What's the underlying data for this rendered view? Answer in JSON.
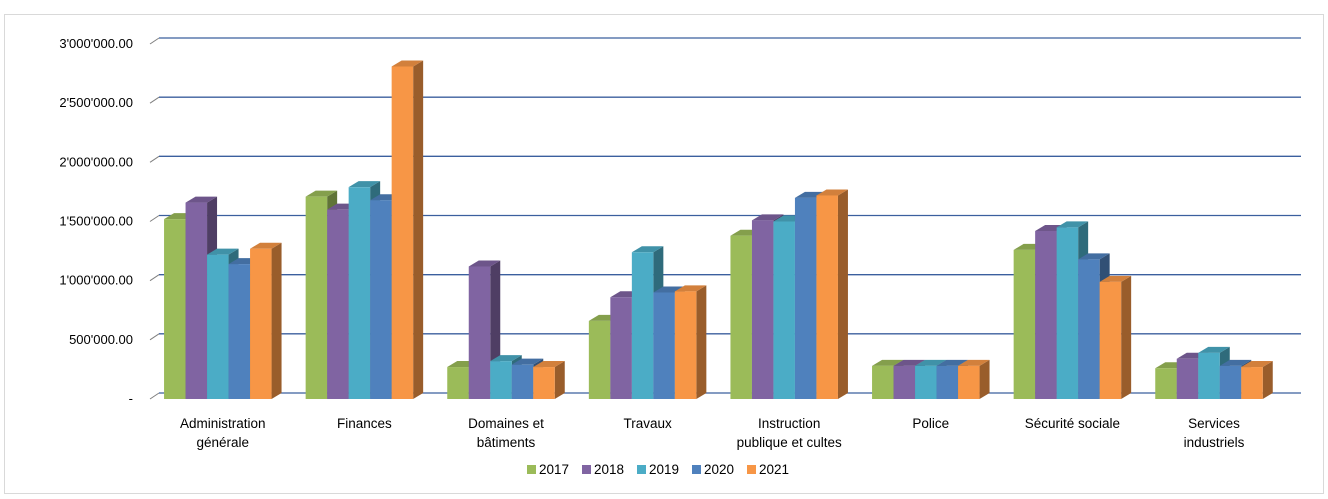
{
  "chart_data": {
    "type": "bar",
    "title": "",
    "xlabel": "",
    "ylabel": "",
    "ylim": [
      0,
      3000000
    ],
    "y_ticks": [
      {
        "value": 0,
        "label": "-"
      },
      {
        "value": 500000,
        "label": "500'000.00"
      },
      {
        "value": 1000000,
        "label": "1'000'000.00"
      },
      {
        "value": 1500000,
        "label": "1'500'000.00"
      },
      {
        "value": 2000000,
        "label": "2'000'000.00"
      },
      {
        "value": 2500000,
        "label": "2'500'000.00"
      },
      {
        "value": 3000000,
        "label": "3'000'000.00"
      }
    ],
    "grid": true,
    "legend_position": "bottom",
    "style": "3d-clustered-column",
    "categories": [
      [
        "Administration",
        "générale"
      ],
      [
        "Finances"
      ],
      [
        "Domaines et",
        "bâtiments"
      ],
      [
        "Travaux"
      ],
      [
        "Instruction",
        "publique et cultes"
      ],
      [
        "Police"
      ],
      [
        "Sécurité sociale"
      ],
      [
        "Services",
        "industriels"
      ]
    ],
    "series": [
      {
        "name": "2017",
        "color": "#9bbb59",
        "values": [
          1520000,
          1710000,
          270000,
          660000,
          1380000,
          280000,
          1260000,
          260000
        ]
      },
      {
        "name": "2018",
        "color": "#8064a2",
        "values": [
          1660000,
          1600000,
          1120000,
          860000,
          1510000,
          280000,
          1420000,
          340000
        ]
      },
      {
        "name": "2019",
        "color": "#4bacc6",
        "values": [
          1220000,
          1790000,
          320000,
          1240000,
          1500000,
          280000,
          1450000,
          390000
        ]
      },
      {
        "name": "2020",
        "color": "#4f81bd",
        "values": [
          1140000,
          1680000,
          290000,
          900000,
          1700000,
          280000,
          1180000,
          280000
        ]
      },
      {
        "name": "2021",
        "color": "#f79646",
        "values": [
          1270000,
          2810000,
          270000,
          910000,
          1720000,
          280000,
          990000,
          270000
        ]
      }
    ]
  }
}
